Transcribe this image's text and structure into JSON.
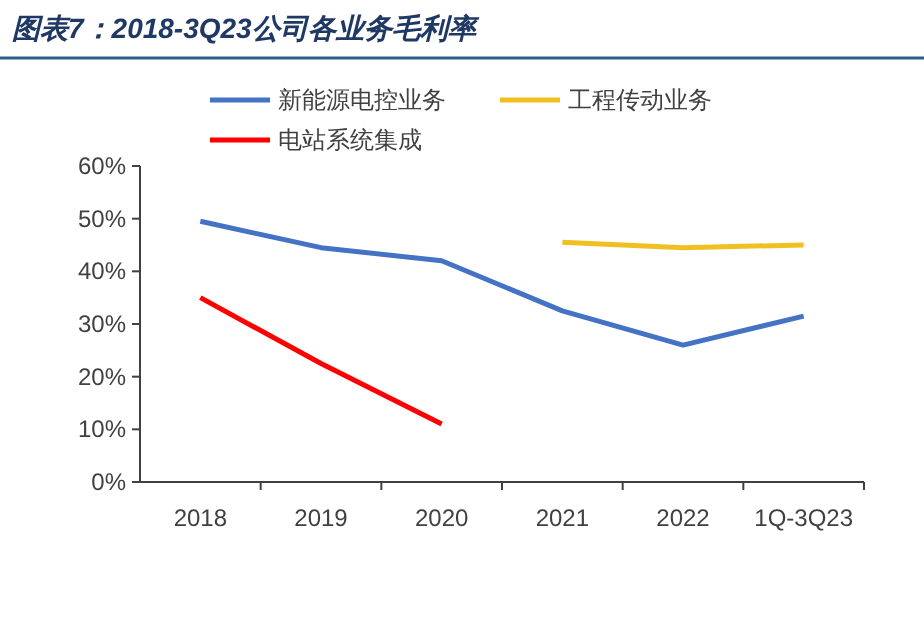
{
  "chart_data": {
    "type": "line",
    "title": "图表7：2018-3Q23公司各业务毛利率",
    "categories": [
      "2018",
      "2019",
      "2020",
      "2021",
      "2022",
      "1Q-3Q23"
    ],
    "series": [
      {
        "name": "新能源电控业务",
        "color": "#4472c4",
        "values": [
          49.5,
          44.5,
          42,
          32.5,
          26,
          31.5
        ]
      },
      {
        "name": "工程传动业务",
        "color": "#f0c020",
        "values": [
          null,
          null,
          null,
          45.5,
          44.5,
          45
        ]
      },
      {
        "name": "电站系统集成",
        "color": "#ff0000",
        "values": [
          35,
          22.5,
          11,
          null,
          null,
          null
        ]
      }
    ],
    "ylim": [
      0,
      60
    ],
    "yticks": [
      {
        "value": 0,
        "label": "0%"
      },
      {
        "value": 10,
        "label": "10%"
      },
      {
        "value": 20,
        "label": "20%"
      },
      {
        "value": 30,
        "label": "30%"
      },
      {
        "value": 40,
        "label": "40%"
      },
      {
        "value": 50,
        "label": "50%"
      },
      {
        "value": 60,
        "label": "60%"
      }
    ],
    "grid": false,
    "legend": "top",
    "marker": "none",
    "line_style": "solid"
  }
}
